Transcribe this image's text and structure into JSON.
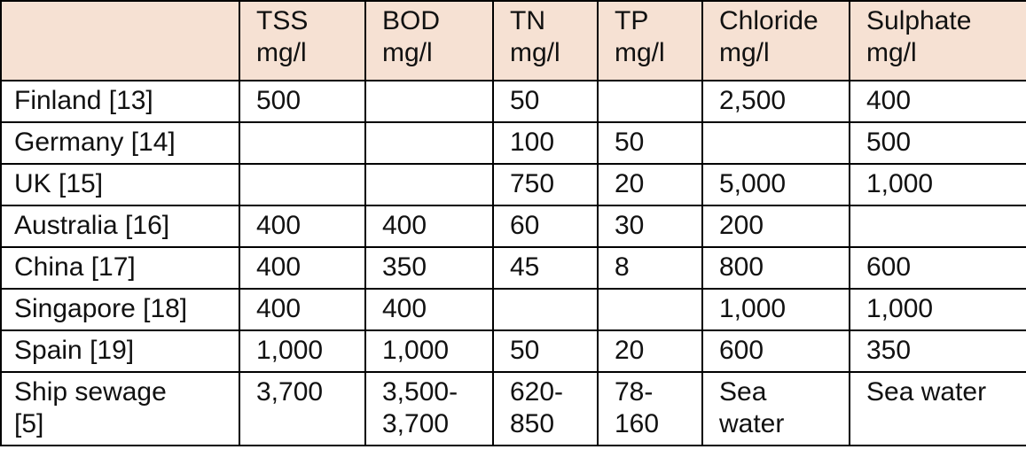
{
  "table": {
    "corner": "",
    "headers": [
      {
        "name": "TSS",
        "unit": "mg/l"
      },
      {
        "name": "BOD",
        "unit": "mg/l"
      },
      {
        "name": "TN",
        "unit": "mg/l"
      },
      {
        "name": "TP",
        "unit": "mg/l"
      },
      {
        "name": "Chloride",
        "unit": "mg/l"
      },
      {
        "name": "Sulphate",
        "unit": "mg/l"
      }
    ],
    "rows": [
      {
        "label": [
          "Finland [13]"
        ],
        "cells": [
          [
            "500"
          ],
          [
            ""
          ],
          [
            "50"
          ],
          [
            ""
          ],
          [
            "2,500"
          ],
          [
            "400"
          ]
        ]
      },
      {
        "label": [
          "Germany [14]"
        ],
        "cells": [
          [
            ""
          ],
          [
            ""
          ],
          [
            "100"
          ],
          [
            "50"
          ],
          [
            ""
          ],
          [
            "500"
          ]
        ]
      },
      {
        "label": [
          "UK [15]"
        ],
        "cells": [
          [
            ""
          ],
          [
            ""
          ],
          [
            "750"
          ],
          [
            "20"
          ],
          [
            "5,000"
          ],
          [
            "1,000"
          ]
        ]
      },
      {
        "label": [
          "Australia [16]"
        ],
        "cells": [
          [
            "400"
          ],
          [
            "400"
          ],
          [
            "60"
          ],
          [
            "30"
          ],
          [
            "200"
          ],
          [
            ""
          ]
        ]
      },
      {
        "label": [
          "China [17]"
        ],
        "cells": [
          [
            "400"
          ],
          [
            "350"
          ],
          [
            "45"
          ],
          [
            "8"
          ],
          [
            "800"
          ],
          [
            "600"
          ]
        ]
      },
      {
        "label": [
          "Singapore [18]"
        ],
        "cells": [
          [
            "400"
          ],
          [
            "400"
          ],
          [
            ""
          ],
          [
            ""
          ],
          [
            "1,000"
          ],
          [
            "1,000"
          ]
        ]
      },
      {
        "label": [
          "Spain [19]"
        ],
        "cells": [
          [
            "1,000"
          ],
          [
            "1,000"
          ],
          [
            "50"
          ],
          [
            "20"
          ],
          [
            "600"
          ],
          [
            "350"
          ]
        ]
      },
      {
        "label": [
          "Ship sewage",
          "[5]"
        ],
        "cells": [
          [
            "3,700"
          ],
          [
            "3,500-",
            "3,700"
          ],
          [
            "620-",
            "850"
          ],
          [
            "78-",
            "160"
          ],
          [
            "Sea",
            "water"
          ],
          [
            "Sea water"
          ]
        ]
      }
    ]
  },
  "colors": {
    "header_background": "#f6e1d3",
    "border": "#000000",
    "text": "#111111"
  }
}
